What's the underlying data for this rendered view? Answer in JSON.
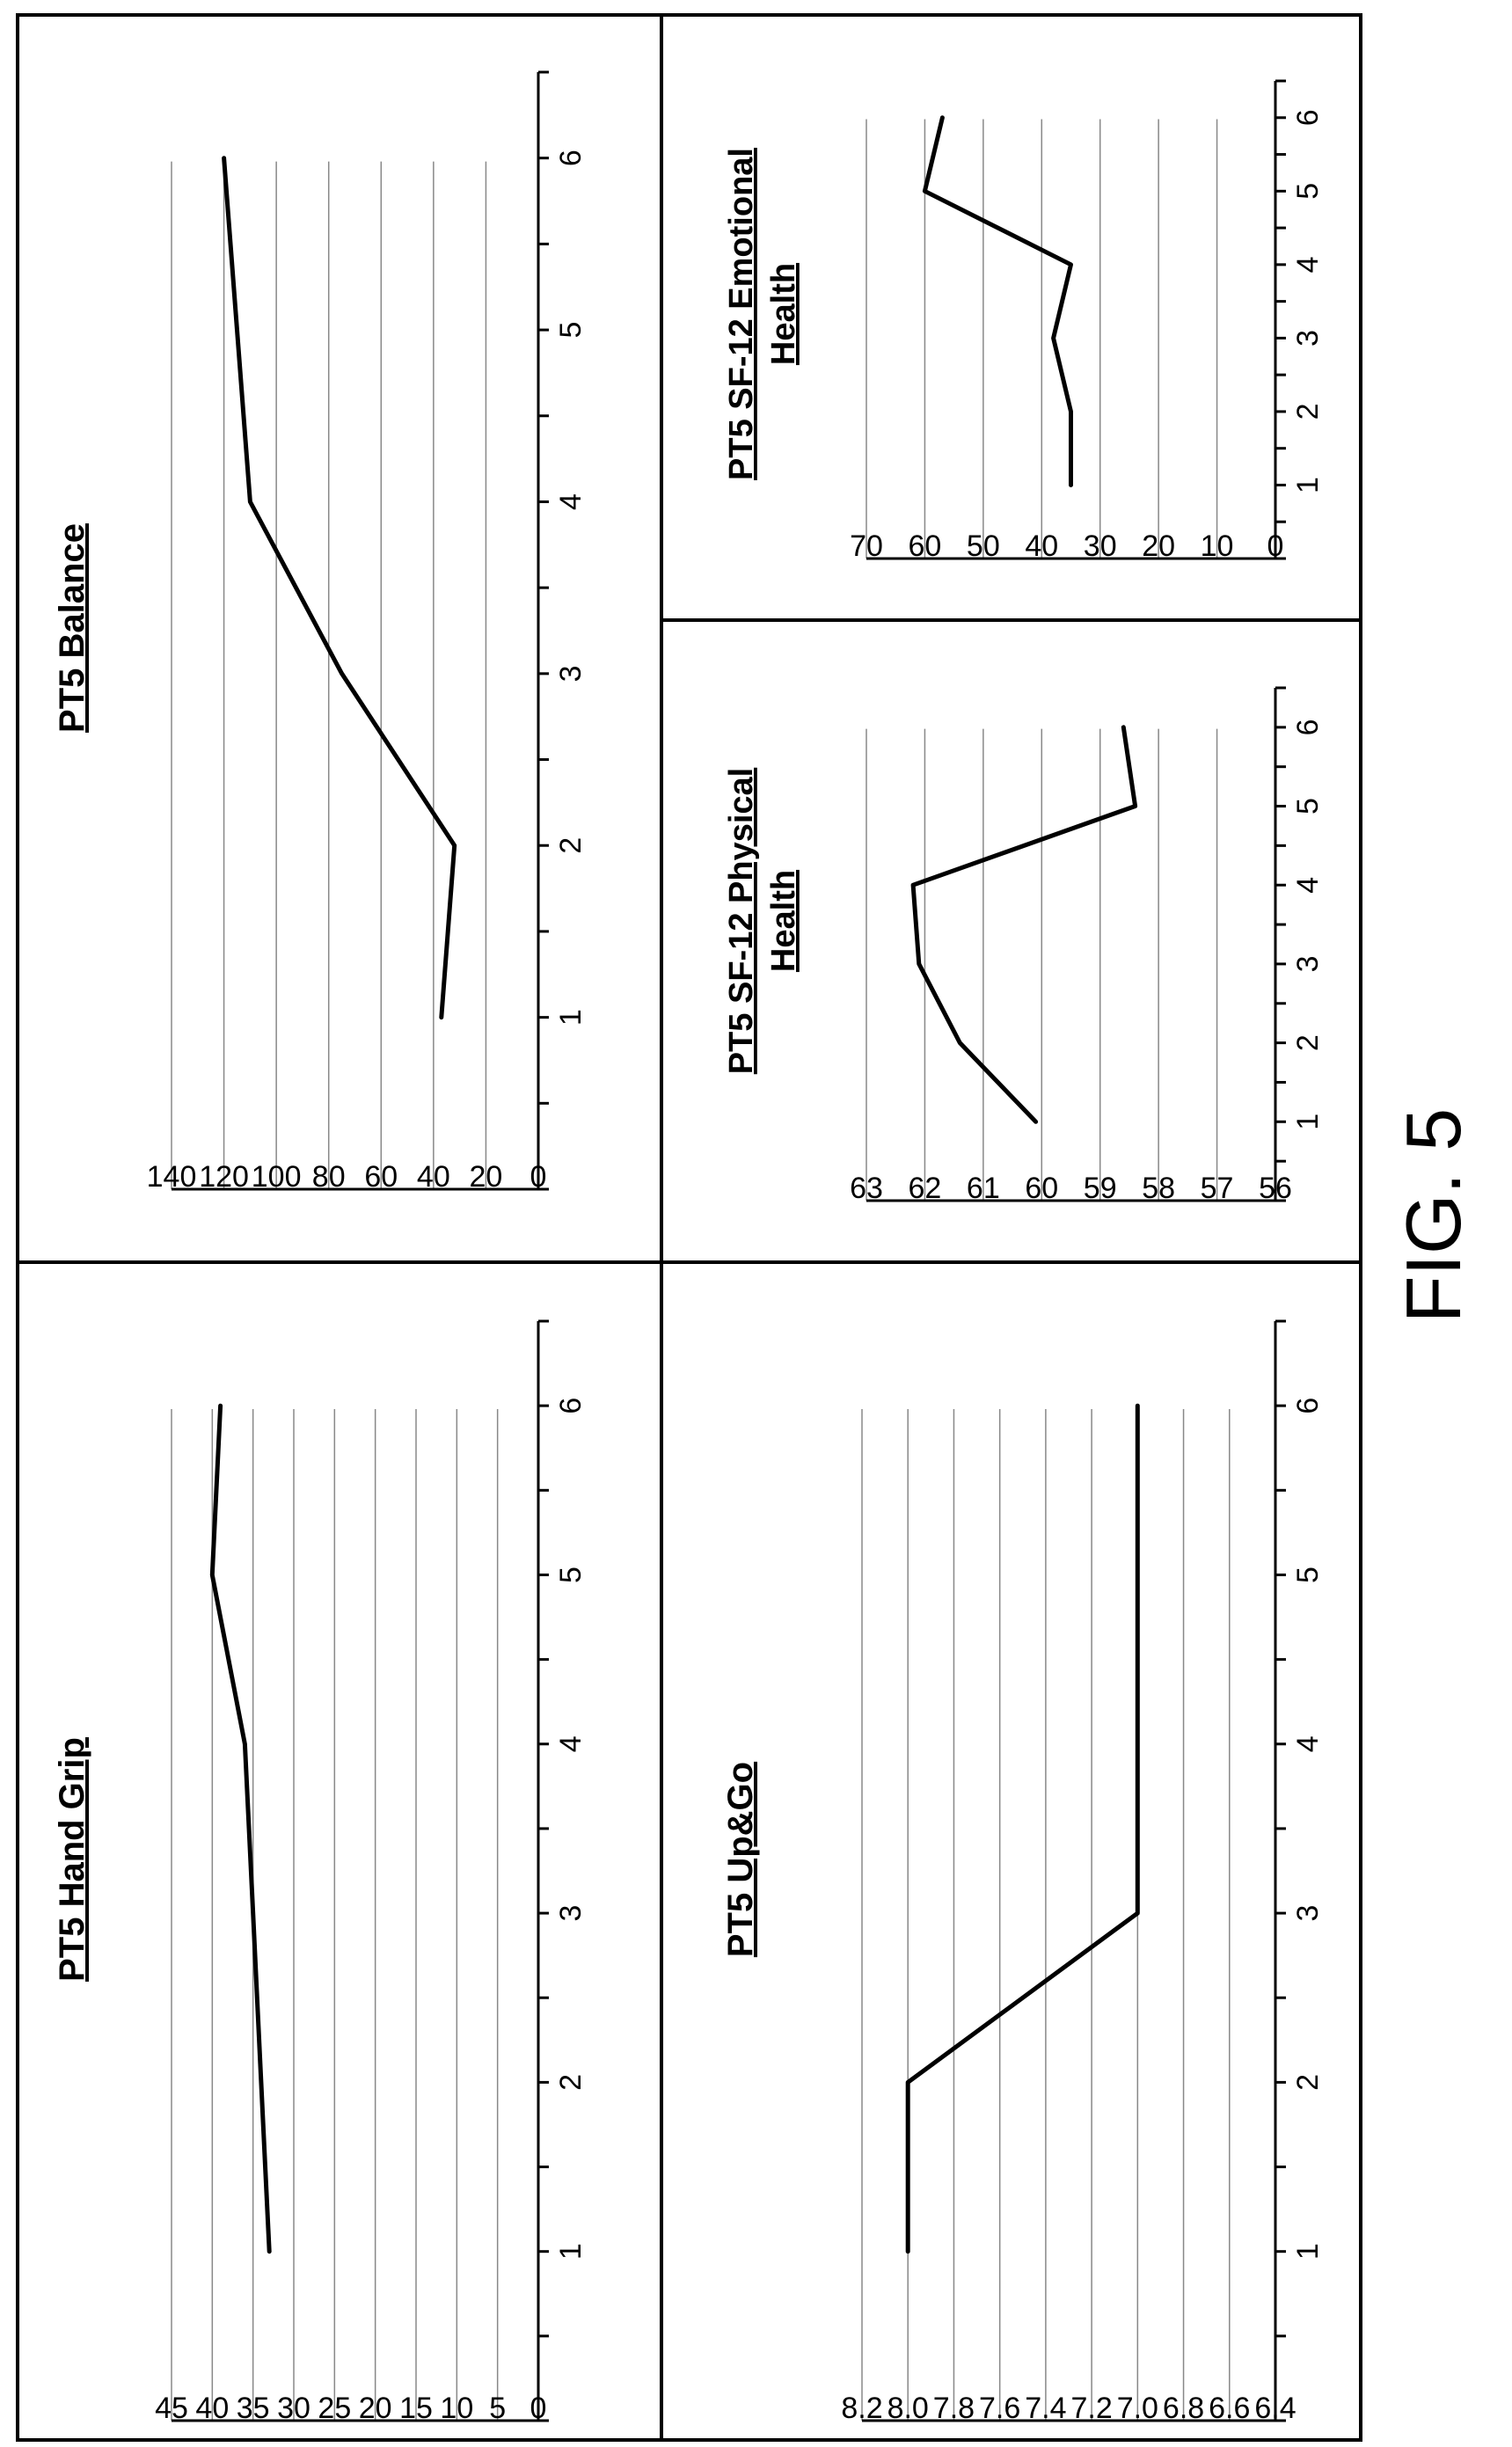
{
  "figure": {
    "label": "FIG. 5"
  },
  "chart_data": [
    {
      "id": "hand-grip",
      "type": "line",
      "title": [
        "PT5 Hand Grip"
      ],
      "x": [
        1,
        2,
        3,
        4,
        5,
        6
      ],
      "xticks": [
        "1",
        "2",
        "3",
        "4",
        "5",
        "6"
      ],
      "values": [
        33,
        34,
        35,
        36,
        40,
        39
      ],
      "ylim": [
        0,
        45
      ],
      "yticks": [
        "0",
        "5",
        "10",
        "15",
        "20",
        "25",
        "30",
        "35",
        "40",
        "45"
      ],
      "grid": true
    },
    {
      "id": "balance",
      "type": "line",
      "title": [
        "PT5 Balance"
      ],
      "x": [
        1,
        2,
        3,
        4,
        5,
        6
      ],
      "xticks": [
        "1",
        "2",
        "3",
        "4",
        "5",
        "6"
      ],
      "values": [
        37,
        32,
        75,
        110,
        115,
        120
      ],
      "ylim": [
        0,
        140
      ],
      "yticks": [
        "0",
        "20",
        "40",
        "60",
        "80",
        "100",
        "120",
        "140"
      ],
      "grid": true
    },
    {
      "id": "up-go",
      "type": "line",
      "title": [
        "PT5 Up&Go"
      ],
      "x": [
        1,
        2,
        3,
        4,
        5,
        6
      ],
      "xticks": [
        "1",
        "2",
        "3",
        "4",
        "5",
        "6"
      ],
      "values": [
        8.0,
        8.0,
        7.0,
        7.0,
        7.0,
        7.0
      ],
      "ylim": [
        6.4,
        8.2
      ],
      "yticks": [
        "6.4",
        "6.6",
        "6.8",
        "7.0",
        "7.2",
        "7.4",
        "7.6",
        "7.8",
        "8.0",
        "8.2"
      ],
      "grid": true
    },
    {
      "id": "sf12-physical",
      "type": "line",
      "title": [
        "PT5 SF-12 Physical",
        "Health"
      ],
      "x": [
        1,
        2,
        3,
        4,
        5,
        6
      ],
      "xticks": [
        "1",
        "2",
        "3",
        "4",
        "5",
        "6"
      ],
      "values": [
        60.1,
        61.4,
        62.1,
        62.2,
        58.4,
        58.6
      ],
      "ylim": [
        56,
        63
      ],
      "yticks": [
        "56",
        "57",
        "58",
        "59",
        "60",
        "61",
        "62",
        "63"
      ],
      "grid": true
    },
    {
      "id": "sf12-emotional",
      "type": "line",
      "title": [
        "PT5 SF-12 Emotional",
        "Health"
      ],
      "x": [
        1,
        2,
        3,
        4,
        5,
        6
      ],
      "xticks": [
        "1",
        "2",
        "3",
        "4",
        "5",
        "6"
      ],
      "values": [
        35,
        35,
        38,
        35,
        60,
        57
      ],
      "ylim": [
        0,
        70
      ],
      "yticks": [
        "0",
        "10",
        "20",
        "30",
        "40",
        "50",
        "60",
        "70"
      ],
      "grid": true
    }
  ]
}
